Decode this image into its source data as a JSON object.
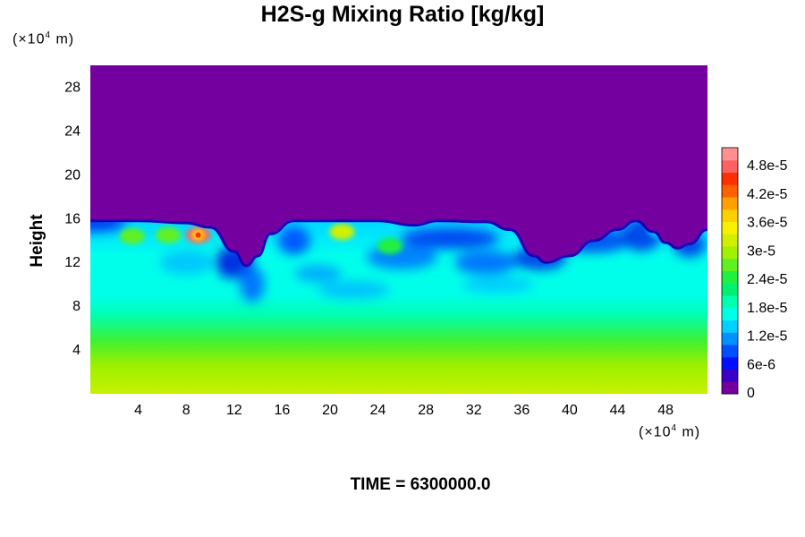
{
  "chart_data": {
    "type": "heatmap",
    "title": "H2S-g Mixing Ratio [kg/kg]",
    "xlabel": "",
    "ylabel": "Height",
    "x_unit": {
      "prefix": "(×10",
      "exponent": "4",
      "suffix": " m)"
    },
    "y_unit": {
      "prefix": "(×10",
      "exponent": "4",
      "suffix": " m)"
    },
    "xlim": [
      0,
      51.5
    ],
    "ylim": [
      0,
      30
    ],
    "x_ticks": [
      4,
      8,
      12,
      16,
      20,
      24,
      28,
      32,
      36,
      40,
      44,
      48
    ],
    "y_ticks": [
      4,
      8,
      12,
      16,
      20,
      24,
      28
    ],
    "colorbar": {
      "range": [
        0,
        5.2e-05
      ],
      "tick_values": [
        0,
        6e-06,
        1.2e-05,
        1.8e-05,
        2.4e-05,
        3e-05,
        3.6e-05,
        4.2e-05,
        4.8e-05
      ],
      "tick_labels": [
        "0",
        "6e-6",
        "1.2e-5",
        "1.8e-5",
        "2.4e-5",
        "3e-5",
        "3.6e-5",
        "4.2e-5",
        "4.8e-5"
      ],
      "colors": [
        "#7400a0",
        "#3a00c8",
        "#0010ff",
        "#0050ff",
        "#0090ff",
        "#00d0ff",
        "#00ffe8",
        "#00ffb0",
        "#00f070",
        "#20f040",
        "#60f020",
        "#a0f000",
        "#d0f000",
        "#f8f000",
        "#ffd000",
        "#ffa000",
        "#ff6000",
        "#ff3000",
        "#ff6060",
        "#ff9090"
      ]
    },
    "field_description": "layered mixing ratio: ~3e-5 near surface decreasing to ~1.8e-5 by height 8, mixed turbulent layer 8–16 with blue troughs and green blobs, zero above ~16",
    "layer_top": [
      [
        0,
        15.8
      ],
      [
        4,
        15.8
      ],
      [
        8,
        15.6
      ],
      [
        10,
        15.2
      ],
      [
        12,
        13.0
      ],
      [
        13,
        11.7
      ],
      [
        14,
        12.6
      ],
      [
        15,
        14.6
      ],
      [
        17,
        15.8
      ],
      [
        24,
        15.8
      ],
      [
        27,
        15.4
      ],
      [
        29,
        15.8
      ],
      [
        33,
        15.7
      ],
      [
        35,
        15.0
      ],
      [
        37,
        12.6
      ],
      [
        38,
        12.0
      ],
      [
        40,
        12.6
      ],
      [
        42,
        14.0
      ],
      [
        44,
        15.0
      ],
      [
        45.5,
        15.8
      ],
      [
        47,
        14.8
      ],
      [
        48,
        13.8
      ],
      [
        49,
        13.3
      ],
      [
        50,
        13.7
      ],
      [
        51.5,
        15.0
      ]
    ],
    "hotspots": [
      {
        "x": 9.0,
        "y": 14.5,
        "value": 4.8e-05
      },
      {
        "x": 21.0,
        "y": 14.8,
        "value": 3.3e-05
      },
      {
        "x": 3.5,
        "y": 14.4,
        "value": 2.7e-05
      },
      {
        "x": 6.5,
        "y": 14.5,
        "value": 2.7e-05
      },
      {
        "x": 25.0,
        "y": 13.5,
        "value": 2.4e-05
      },
      {
        "x": 47.5,
        "y": 15.0,
        "value": 1.5e-05
      }
    ],
    "footer": "TIME = 6300000.0"
  }
}
